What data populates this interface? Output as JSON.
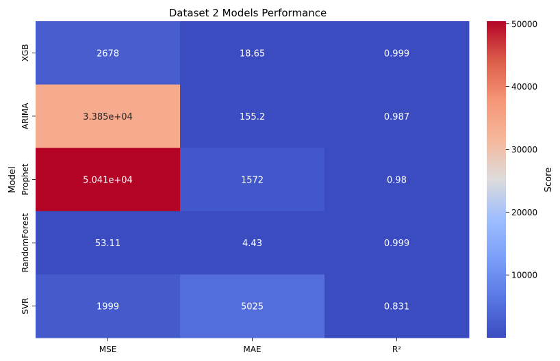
{
  "chart_data": {
    "type": "heatmap",
    "title": "Dataset 2 Models Performance",
    "xlabel": "",
    "ylabel": "Model",
    "x_categories": [
      "MSE",
      "MAE",
      "R²"
    ],
    "y_categories": [
      "XGB",
      "ARIMA",
      "Prophet",
      "RandomForest",
      "SVR"
    ],
    "values": [
      [
        2678,
        18.65,
        0.999
      ],
      [
        33850,
        155.2,
        0.987
      ],
      [
        50410,
        1572,
        0.98
      ],
      [
        53.11,
        4.43,
        0.999
      ],
      [
        1999,
        5025,
        0.831
      ]
    ],
    "cell_labels": [
      [
        "2678",
        "18.65",
        "0.999"
      ],
      [
        "3.385e+04",
        "155.2",
        "0.987"
      ],
      [
        "5.041e+04",
        "1572",
        "0.98"
      ],
      [
        "53.11",
        "4.43",
        "0.999"
      ],
      [
        "1999",
        "5025",
        "0.831"
      ]
    ],
    "colormap": "coolwarm",
    "vmin": 0.831,
    "vmax": 50410,
    "colorbar": {
      "label": "Score",
      "ticks": [
        10000,
        20000,
        30000,
        40000,
        50000
      ],
      "tick_labels": [
        "10000",
        "20000",
        "30000",
        "40000",
        "50000"
      ]
    }
  }
}
